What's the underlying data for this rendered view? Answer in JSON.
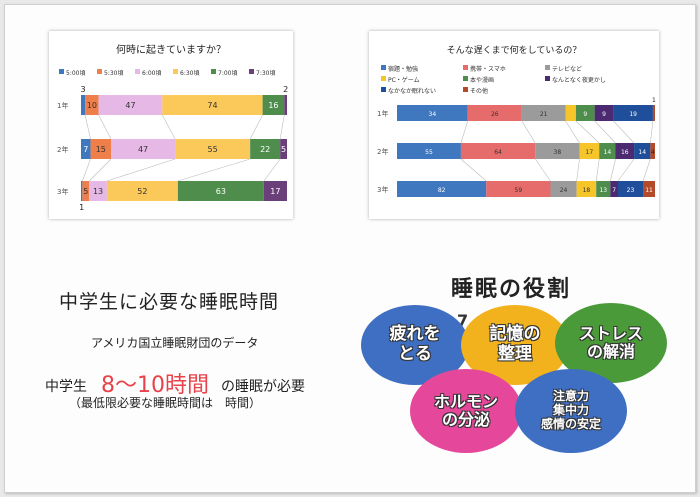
{
  "charts": [
    {
      "type": "bar",
      "stacked": "horizontal-100%",
      "title": "何時に起きていますか？",
      "legend": [
        "5:00頃",
        "5:30頃",
        "6:00頃",
        "6:30頃",
        "7:00頃",
        "7:30頃"
      ],
      "colors": [
        "#3f78bf",
        "#ef7f4a",
        "#e6b8e6",
        "#fbc85a",
        "#4e8d4b",
        "#6b3f7a"
      ],
      "categories": [
        "1年",
        "2年",
        "3年"
      ],
      "rows": [
        [
          3,
          10,
          47,
          74,
          16,
          2
        ],
        [
          7,
          15,
          47,
          55,
          22,
          5
        ],
        [
          1,
          5,
          13,
          52,
          63,
          17
        ]
      ],
      "labels": [
        [
          "3",
          "10",
          "47",
          "74",
          "16",
          "2"
        ],
        [
          "7",
          "15",
          "47",
          "55",
          "22",
          "5"
        ],
        [
          "1",
          "5",
          "13",
          "52",
          "63",
          "17"
        ]
      ],
      "xlabel": "",
      "ylabel": ""
    },
    {
      "type": "bar",
      "stacked": "horizontal-100%",
      "title": "そんな遅くまで何をしているの？",
      "legend": [
        "宿題・勉強",
        "携帯・スマホ",
        "テレビなど",
        "PC・ゲーム",
        "本や漫画",
        "なんとなく夜更かし",
        "なかなか眠れない",
        "その他"
      ],
      "colors": [
        "#3f78bf",
        "#e66b6b",
        "#9b9b9b",
        "#f5c52a",
        "#4e8d4b",
        "#4b2a72",
        "#1f4f9a",
        "#b34a2a"
      ],
      "categories": [
        "1年",
        "2年",
        "3年"
      ],
      "rows": [
        [
          34,
          26,
          21,
          5,
          9,
          9,
          19,
          1
        ],
        [
          55,
          64,
          38,
          17,
          14,
          16,
          14,
          4
        ],
        [
          82,
          59,
          24,
          18,
          13,
          7,
          23,
          11
        ]
      ],
      "labels": [
        [
          "34",
          "26",
          "21",
          "",
          "9",
          "9",
          "19",
          "1"
        ],
        [
          "55",
          "64",
          "38",
          "17",
          "14",
          "16",
          "14",
          "4"
        ],
        [
          "82",
          "59",
          "24",
          "18",
          "13",
          "7",
          "23",
          "11"
        ]
      ],
      "xlabel": "",
      "ylabel": ""
    }
  ],
  "info": {
    "heading": "中学生に必要な睡眠時間",
    "source": "アメリカ国立睡眠財団のデータ",
    "grade": "中学生",
    "hours": "8～10時間",
    "suffix": "の睡眠が必要",
    "note": "（最低限必要な睡眠時間は　時間）"
  },
  "roles": {
    "title": "睡眠の役割",
    "stray": "7",
    "items": [
      {
        "lines": [
          "疲れを",
          "とる"
        ],
        "color": "#3f6fc2"
      },
      {
        "lines": [
          "記憶の",
          "整理"
        ],
        "color": "#f2b21e"
      },
      {
        "lines": [
          "ストレス",
          "の解消"
        ],
        "color": "#4a9a3a"
      },
      {
        "lines": [
          "ホルモン",
          "の分泌"
        ],
        "color": "#e5479a"
      },
      {
        "lines": [
          "注意力",
          "集中力",
          "感情の安定"
        ],
        "color": "#3f6fc2"
      }
    ]
  }
}
